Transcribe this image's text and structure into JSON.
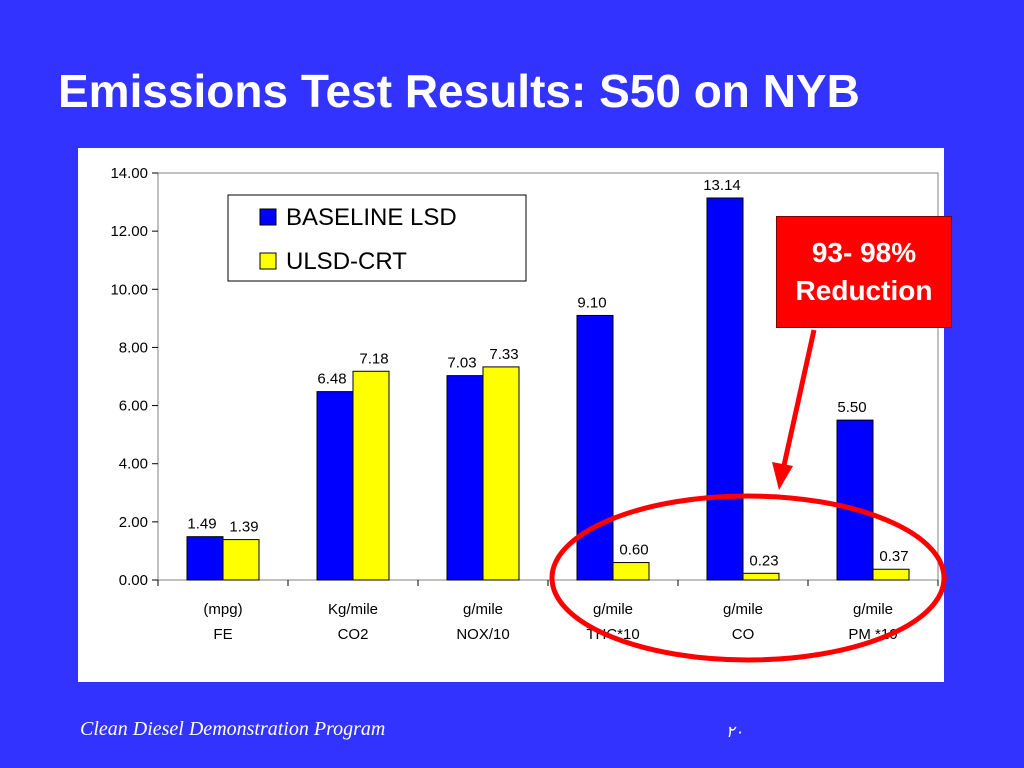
{
  "slide": {
    "title": "Emissions Test Results: S50 on NYB",
    "footer": "Clean Diesel Demonstration Program",
    "page_number": "٢٠",
    "callout": {
      "line1": "93- 98%",
      "line2": "Reduction"
    }
  },
  "chart_data": {
    "type": "bar",
    "categories": [
      [
        "(mpg)",
        "FE"
      ],
      [
        "Kg/mile",
        "CO2"
      ],
      [
        "g/mile",
        "NOX/10"
      ],
      [
        "g/mile",
        "THC*10"
      ],
      [
        "g/mile",
        "CO"
      ],
      [
        "g/mile",
        "PM *10"
      ]
    ],
    "series": [
      {
        "name": "BASELINE LSD",
        "color": "#0000ff",
        "values": [
          1.49,
          6.48,
          7.03,
          9.1,
          13.14,
          5.5
        ],
        "labels": [
          "1.49",
          "6.48",
          "7.03",
          "9.10",
          "13.14",
          "5.50"
        ]
      },
      {
        "name": "ULSD-CRT",
        "color": "#ffff00",
        "values": [
          1.39,
          7.18,
          7.33,
          0.6,
          0.23,
          0.37
        ],
        "labels": [
          "1.39",
          "7.18",
          "7.33",
          "0.60",
          "0.23",
          "0.37"
        ]
      }
    ],
    "ylim": [
      0,
      14
    ],
    "yticks": [
      "0.00",
      "2.00",
      "4.00",
      "6.00",
      "8.00",
      "10.00",
      "12.00",
      "14.00"
    ],
    "grid": false,
    "legend_position": "top-left inside plot",
    "annotation": {
      "shape": "red ellipse with arrow",
      "color": "#ff0000",
      "highlights": [
        "THC*10",
        "CO",
        "PM *10"
      ]
    }
  }
}
